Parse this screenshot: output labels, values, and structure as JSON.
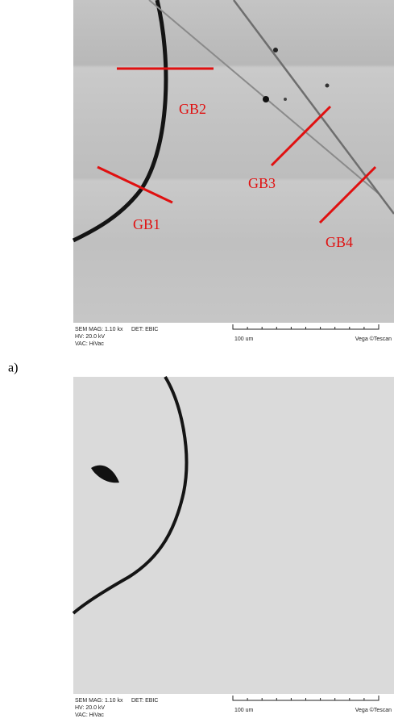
{
  "panels": [
    {
      "label": "a)",
      "annotations": [
        "GB1",
        "GB2",
        "GB3",
        "GB4"
      ],
      "info": {
        "mag": "SEM MAG: 1.10 kx",
        "det": "DET: EBIC",
        "hv": "HV: 20.0 kV",
        "vac": "VAC: HiVac",
        "scale": "100 um",
        "brand": "Vega ©Tescan"
      }
    },
    {
      "info": {
        "mag": "SEM MAG: 1.10 kx",
        "det": "DET: EBIC",
        "hv": "HV: 20.0 kV",
        "vac": "VAC: HiVac",
        "scale": "100 um",
        "brand": "Vega ©Tescan"
      }
    }
  ]
}
